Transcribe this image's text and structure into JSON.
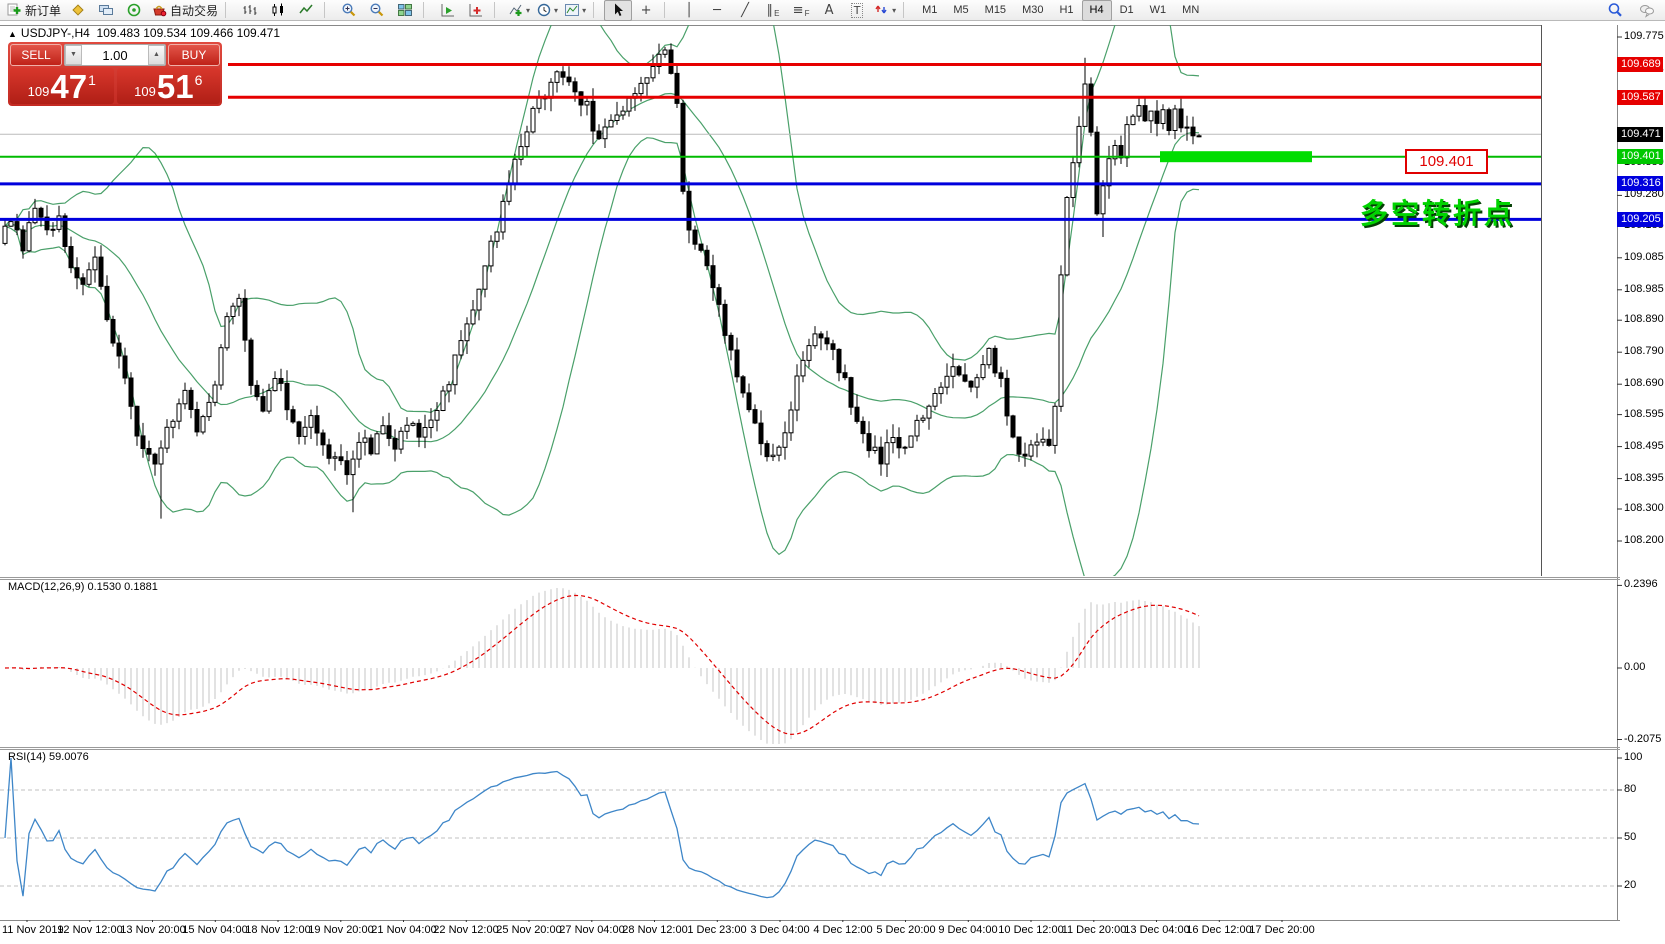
{
  "toolbar": {
    "items": [
      {
        "name": "new-order-button",
        "type": "svgbtn",
        "icon": "new-order",
        "label": "新订单"
      },
      {
        "name": "market-watch-button",
        "type": "svgbtn",
        "icon": "marketwatch"
      },
      {
        "name": "terminals-button",
        "type": "svgbtn",
        "icon": "terminals"
      },
      {
        "name": "signals-button",
        "type": "svgbtn",
        "icon": "signals"
      },
      {
        "name": "autotrade-button",
        "type": "svgbtn",
        "icon": "autotrade",
        "label": "自动交易"
      },
      {
        "type": "sep"
      },
      {
        "name": "bar-chart-button",
        "type": "svgbtn",
        "icon": "bars"
      },
      {
        "name": "candle-chart-button",
        "type": "svgbtn",
        "icon": "candles"
      },
      {
        "name": "line-chart-button",
        "type": "svgbtn",
        "icon": "linechart"
      },
      {
        "type": "sep"
      },
      {
        "name": "zoom-in-button",
        "type": "svgbtn",
        "icon": "zoom-in"
      },
      {
        "name": "zoom-out-button",
        "type": "svgbtn",
        "icon": "zoom-out"
      },
      {
        "name": "tile-windows-button",
        "type": "svgbtn",
        "icon": "tile"
      },
      {
        "type": "sep"
      },
      {
        "name": "auto-scroll-button",
        "type": "svgbtn",
        "icon": "autoscroll"
      },
      {
        "name": "chart-shift-button",
        "type": "svgbtn",
        "icon": "shift"
      },
      {
        "type": "sep"
      },
      {
        "name": "indicators-button",
        "type": "svgbtn",
        "icon": "indicators",
        "caret": true
      },
      {
        "name": "periods-button",
        "type": "svgbtn",
        "icon": "periods",
        "caret": true
      },
      {
        "name": "templates-button",
        "type": "svgbtn",
        "icon": "templates",
        "caret": true
      },
      {
        "type": "sep"
      },
      {
        "name": "cursor-button",
        "type": "svgbtn",
        "icon": "cursor",
        "active": true
      },
      {
        "name": "crosshair-button",
        "type": "glyphbtn",
        "glyph": "+"
      },
      {
        "type": "sep"
      },
      {
        "name": "vertical-line-button",
        "type": "glyphbtn",
        "glyph": "│"
      },
      {
        "name": "horizontal-line-button",
        "type": "glyphbtn",
        "glyph": "─"
      },
      {
        "name": "trendline-button",
        "type": "glyphbtn",
        "glyph": "╱"
      },
      {
        "name": "channel-button",
        "type": "glyphbtn",
        "glyph": "∥",
        "sub": "E"
      },
      {
        "name": "fibonacci-button",
        "type": "glyphbtn",
        "glyph": "≡",
        "sub": "F"
      },
      {
        "name": "text-button",
        "type": "glyphbtn",
        "glyph": "A"
      },
      {
        "name": "text-label-button",
        "type": "glyphbtn",
        "glyph": "T",
        "boxed": true
      },
      {
        "name": "arrows-button",
        "type": "svgbtn",
        "icon": "arrows",
        "caret": true
      },
      {
        "type": "sep"
      }
    ],
    "timeframes": [
      "M1",
      "M5",
      "M15",
      "M30",
      "H1",
      "H4",
      "D1",
      "W1",
      "MN"
    ],
    "active_timeframe": "H4",
    "right_items": [
      {
        "name": "search-button",
        "icon": "search"
      },
      {
        "name": "chat-button",
        "icon": "chat"
      }
    ]
  },
  "chart": {
    "title_marker": "▲",
    "symbol_period": "USDJPY-,H4",
    "ohlc": "109.483 109.534 109.466 109.471"
  },
  "oct": {
    "sell_label": "SELL",
    "buy_label": "BUY",
    "volume": "1.00",
    "spin_down": "▼",
    "spin_up": "▲",
    "sell_price": {
      "small": "109",
      "big": "47",
      "sup": "1"
    },
    "buy_price": {
      "small": "109",
      "big": "51",
      "sup": "6"
    }
  },
  "macd": {
    "label": "MACD(12,26,9) 0.1530 0.1881",
    "axis_labels": [
      "0.2396",
      "0.00",
      "-0.2075"
    ]
  },
  "rsi": {
    "label": "RSI(14) 59.0076",
    "axis_labels": [
      "100",
      "80",
      "50",
      "20"
    ]
  },
  "annotations": {
    "price_box_label": "109.401",
    "cn_label": "多空转折点",
    "green_bar_color": "#00dd00"
  },
  "axis": {
    "price_ticks": [
      109.775,
      109.673,
      109.38,
      109.28,
      109.185,
      109.085,
      108.985,
      108.89,
      108.79,
      108.69,
      108.595,
      108.495,
      108.395,
      108.3,
      108.2
    ],
    "badges": [
      {
        "value": "109.689",
        "color": "#e60000"
      },
      {
        "value": "109.587",
        "color": "#e60000"
      },
      {
        "value": "109.471",
        "color": "#000000"
      },
      {
        "value": "109.401",
        "color": "#00c800"
      },
      {
        "value": "109.316",
        "color": "#0000dd"
      },
      {
        "value": "109.205",
        "color": "#0000dd"
      }
    ],
    "time_labels": [
      "11 Nov 2019",
      "12 Nov 12:00",
      "13 Nov 20:00",
      "15 Nov 04:00",
      "18 Nov 12:00",
      "19 Nov 20:00",
      "21 Nov 04:00",
      "22 Nov 12:00",
      "25 Nov 20:00",
      "27 Nov 04:00",
      "28 Nov 12:00",
      "1 Dec 23:00",
      "3 Dec 04:00",
      "4 Dec 12:00",
      "5 Dec 20:00",
      "9 Dec 04:00",
      "10 Dec 12:00",
      "11 Dec 20:00",
      "13 Dec 04:00",
      "16 Dec 12:00",
      "17 Dec 20:00"
    ]
  },
  "chart_data": {
    "type": "candlestick",
    "symbol": "USDJPY-",
    "period": "H4",
    "last_ohlc": {
      "open": 109.483,
      "high": 109.534,
      "low": 109.466,
      "close": 109.471
    },
    "ylim": [
      108.2,
      109.775
    ],
    "levels": {
      "red": [
        109.689,
        109.587
      ],
      "blue": [
        109.316,
        109.205
      ],
      "green": 109.401,
      "current_price": 109.471
    },
    "level_colors": {
      "red": "#e60000",
      "blue": "#0000dd",
      "green": "#00bb00",
      "current": "#bbbbbb"
    },
    "bollinger": {
      "period": 20,
      "deviation": 2,
      "color": "#4aa06a"
    },
    "macd": {
      "fast": 12,
      "slow": 26,
      "signal": 9,
      "value": 0.153,
      "signal_value": 0.1881,
      "hist_color": "#c4c4c4",
      "signal_color": "#e00000",
      "ymax": 0.2396,
      "ymin": -0.2075
    },
    "rsi": {
      "period": 14,
      "value": 59.0076,
      "color": "#3e86c8",
      "grid": [
        80,
        50,
        20
      ]
    },
    "candle_count": 200,
    "price_path_anchors": [
      [
        0,
        109.13
      ],
      [
        2,
        109.2
      ],
      [
        4,
        109.12
      ],
      [
        6,
        109.24
      ],
      [
        8,
        109.16
      ],
      [
        10,
        109.22
      ],
      [
        12,
        109.05
      ],
      [
        14,
        108.98
      ],
      [
        16,
        109.09
      ],
      [
        18,
        108.9
      ],
      [
        20,
        108.78
      ],
      [
        23,
        108.55
      ],
      [
        26,
        108.42
      ],
      [
        28,
        108.56
      ],
      [
        31,
        108.66
      ],
      [
        33,
        108.52
      ],
      [
        36,
        108.68
      ],
      [
        38,
        108.92
      ],
      [
        40,
        108.95
      ],
      [
        42,
        108.7
      ],
      [
        44,
        108.6
      ],
      [
        46,
        108.72
      ],
      [
        48,
        108.62
      ],
      [
        50,
        108.52
      ],
      [
        52,
        108.58
      ],
      [
        54,
        108.48
      ],
      [
        56,
        108.45
      ],
      [
        58,
        108.42
      ],
      [
        60,
        108.52
      ],
      [
        62,
        108.48
      ],
      [
        64,
        108.56
      ],
      [
        66,
        108.5
      ],
      [
        68,
        108.58
      ],
      [
        70,
        108.52
      ],
      [
        72,
        108.56
      ],
      [
        75,
        108.7
      ],
      [
        78,
        108.88
      ],
      [
        80,
        109.0
      ],
      [
        82,
        109.12
      ],
      [
        84,
        109.25
      ],
      [
        86,
        109.38
      ],
      [
        88,
        109.5
      ],
      [
        90,
        109.58
      ],
      [
        92,
        109.63
      ],
      [
        94,
        109.66
      ],
      [
        96,
        109.6
      ],
      [
        98,
        109.56
      ],
      [
        100,
        109.44
      ],
      [
        102,
        109.52
      ],
      [
        104,
        109.56
      ],
      [
        106,
        109.59
      ],
      [
        108,
        109.63
      ],
      [
        110,
        109.7
      ],
      [
        111,
        109.74
      ],
      [
        112,
        109.68
      ],
      [
        113,
        109.58
      ],
      [
        114,
        109.28
      ],
      [
        115,
        109.18
      ],
      [
        117,
        109.1
      ],
      [
        119,
        109.0
      ],
      [
        121,
        108.86
      ],
      [
        123,
        108.72
      ],
      [
        125,
        108.6
      ],
      [
        127,
        108.5
      ],
      [
        129,
        108.46
      ],
      [
        131,
        108.56
      ],
      [
        133,
        108.7
      ],
      [
        135,
        108.8
      ],
      [
        137,
        108.85
      ],
      [
        139,
        108.78
      ],
      [
        141,
        108.7
      ],
      [
        143,
        108.58
      ],
      [
        145,
        108.5
      ],
      [
        147,
        108.46
      ],
      [
        149,
        108.52
      ],
      [
        151,
        108.48
      ],
      [
        153,
        108.56
      ],
      [
        155,
        108.62
      ],
      [
        157,
        108.7
      ],
      [
        159,
        108.75
      ],
      [
        161,
        108.68
      ],
      [
        163,
        108.72
      ],
      [
        165,
        108.78
      ],
      [
        167,
        108.7
      ],
      [
        169,
        108.52
      ],
      [
        171,
        108.46
      ],
      [
        173,
        108.5
      ],
      [
        175,
        108.5
      ],
      [
        176,
        108.64
      ],
      [
        177,
        109.02
      ],
      [
        178,
        109.28
      ],
      [
        179,
        109.36
      ],
      [
        180,
        109.5
      ],
      [
        181,
        109.62
      ],
      [
        182,
        109.5
      ],
      [
        183,
        109.24
      ],
      [
        184,
        109.3
      ],
      [
        185,
        109.38
      ],
      [
        186,
        109.45
      ],
      [
        187,
        109.4
      ],
      [
        188,
        109.48
      ],
      [
        189,
        109.53
      ],
      [
        190,
        109.55
      ],
      [
        191,
        109.5
      ],
      [
        192,
        109.56
      ],
      [
        193,
        109.52
      ],
      [
        194,
        109.55
      ],
      [
        195,
        109.5
      ],
      [
        196,
        109.53
      ],
      [
        197,
        109.48
      ],
      [
        198,
        109.5
      ],
      [
        199,
        109.47
      ]
    ],
    "spikes": [
      [
        26,
        "low",
        108.27
      ],
      [
        58,
        "low",
        108.29
      ],
      [
        111,
        "high",
        109.755
      ],
      [
        180,
        "high",
        109.71
      ],
      [
        183,
        "low",
        109.15
      ]
    ]
  }
}
